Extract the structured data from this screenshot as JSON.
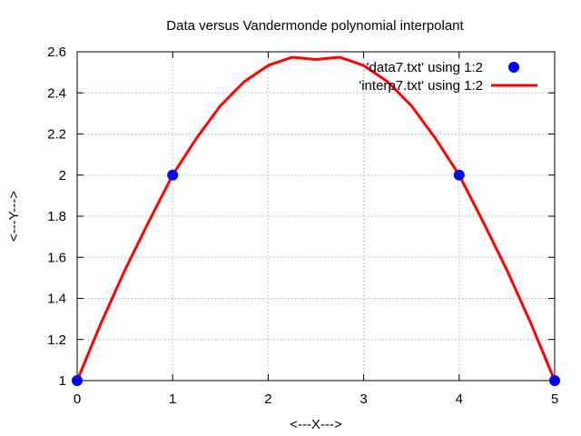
{
  "chart_data": {
    "type": "line",
    "title": "Data versus Vandermonde polynomial interpolant",
    "xlabel": "<---X--->",
    "ylabel": "<---Y--->",
    "xlim": [
      0,
      5
    ],
    "ylim": [
      1,
      2.6
    ],
    "xticks": [
      0,
      1,
      2,
      3,
      4,
      5
    ],
    "xtick_labels": [
      "0",
      "1",
      "2",
      "3",
      "4",
      "5"
    ],
    "yticks": [
      1,
      1.2,
      1.4,
      1.6,
      1.8,
      2,
      2.2,
      2.4,
      2.6
    ],
    "ytick_labels": [
      "1",
      "1.2",
      "1.4",
      "1.6",
      "1.8",
      "2",
      "2.2",
      "2.4",
      "2.6"
    ],
    "grid": true,
    "legend_position": "top-right",
    "series": [
      {
        "name": "'data7.txt' using 1:2",
        "kind": "points",
        "color": "#0000ff",
        "x": [
          0,
          1,
          4,
          5
        ],
        "y": [
          1,
          2,
          2,
          1
        ]
      },
      {
        "name": "'interp7.txt' using 1:2",
        "kind": "line",
        "color": "#ff0000",
        "x": [
          0,
          0.25,
          0.5,
          0.75,
          1,
          1.25,
          1.5,
          1.75,
          2,
          2.25,
          2.5,
          2.75,
          3,
          3.25,
          3.5,
          3.75,
          4,
          4.25,
          4.5,
          4.75,
          5
        ],
        "y": [
          1,
          1.2797,
          1.5375,
          1.7734,
          2,
          2.1797,
          2.3375,
          2.4547,
          2.5333,
          2.5734,
          2.5625,
          2.5734,
          2.5333,
          2.4547,
          2.3375,
          2.1797,
          2,
          1.7734,
          1.5375,
          1.2797,
          1
        ]
      }
    ]
  }
}
